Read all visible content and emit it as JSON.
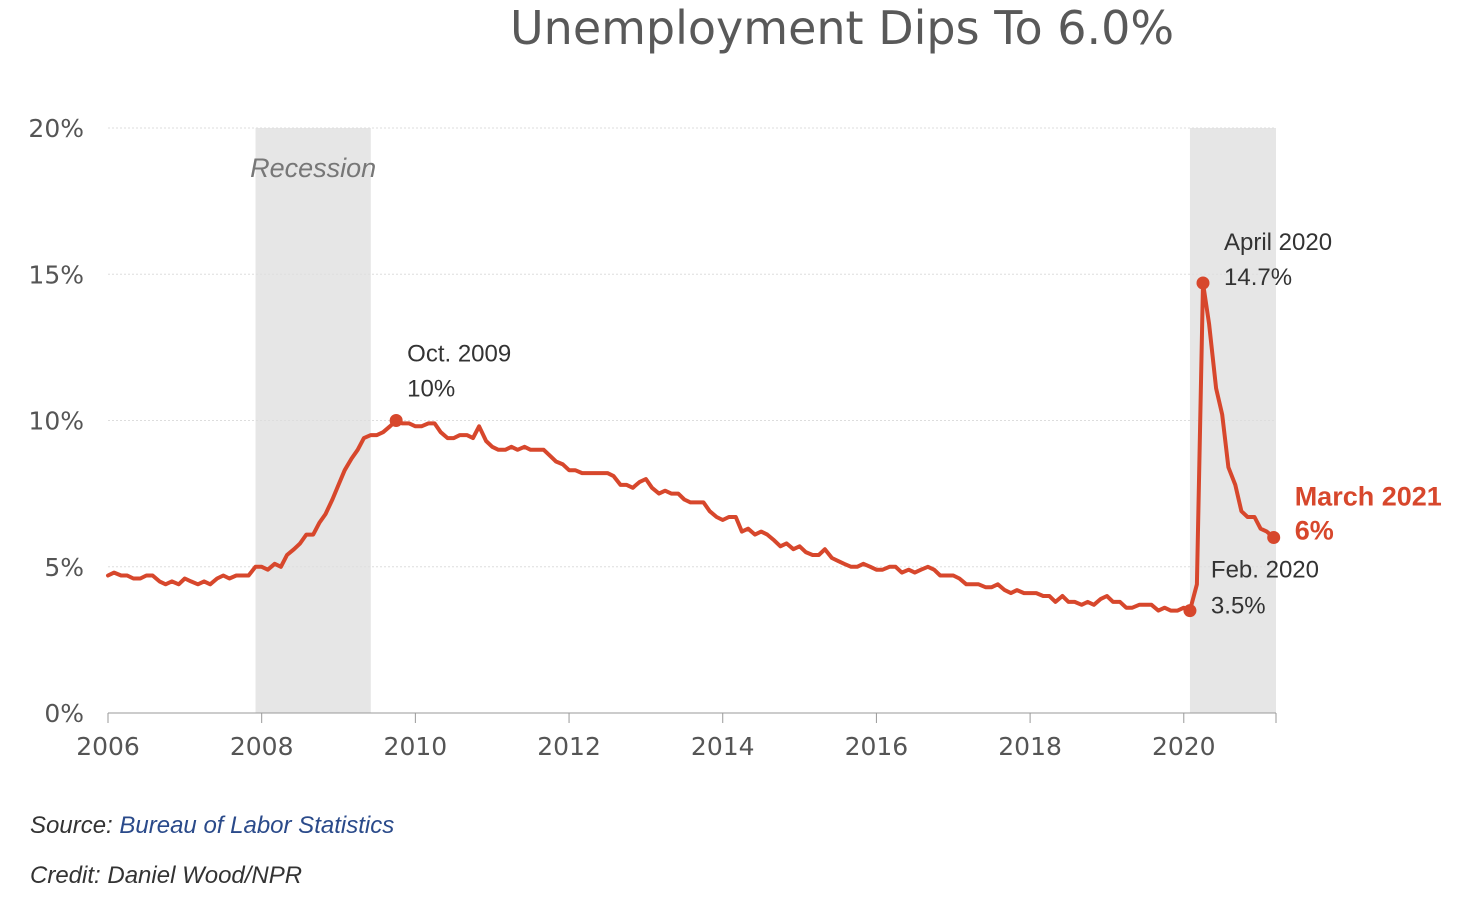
{
  "colors": {
    "line": "#d7472c",
    "recession": "#e6e6e6",
    "grid": "#dddddd",
    "link": "#2a4a8a"
  },
  "chart_data": {
    "type": "line",
    "title": "Unemployment Dips To 6.0%",
    "xlabel": "",
    "ylabel": "",
    "xlim": [
      2006.0,
      2021.2
    ],
    "ylim": [
      0,
      20
    ],
    "x_ticks": [
      "2006",
      "2008",
      "2010",
      "2012",
      "2014",
      "2016",
      "2018",
      "2020"
    ],
    "y_ticks": [
      "0%",
      "5%",
      "10%",
      "15%",
      "20%"
    ],
    "grid": true,
    "recessions": [
      {
        "label": "Recession",
        "start": 2007.92,
        "end": 2009.42
      },
      {
        "label": "",
        "start": 2020.08,
        "end": 2021.2
      }
    ],
    "series": [
      {
        "values": [
          [
            2006.0,
            4.7
          ],
          [
            2006.08,
            4.8
          ],
          [
            2006.17,
            4.7
          ],
          [
            2006.25,
            4.7
          ],
          [
            2006.33,
            4.6
          ],
          [
            2006.42,
            4.6
          ],
          [
            2006.5,
            4.7
          ],
          [
            2006.58,
            4.7
          ],
          [
            2006.67,
            4.5
          ],
          [
            2006.75,
            4.4
          ],
          [
            2006.83,
            4.5
          ],
          [
            2006.92,
            4.4
          ],
          [
            2007.0,
            4.6
          ],
          [
            2007.08,
            4.5
          ],
          [
            2007.17,
            4.4
          ],
          [
            2007.25,
            4.5
          ],
          [
            2007.33,
            4.4
          ],
          [
            2007.42,
            4.6
          ],
          [
            2007.5,
            4.7
          ],
          [
            2007.58,
            4.6
          ],
          [
            2007.67,
            4.7
          ],
          [
            2007.75,
            4.7
          ],
          [
            2007.83,
            4.7
          ],
          [
            2007.92,
            5.0
          ],
          [
            2008.0,
            5.0
          ],
          [
            2008.08,
            4.9
          ],
          [
            2008.17,
            5.1
          ],
          [
            2008.25,
            5.0
          ],
          [
            2008.33,
            5.4
          ],
          [
            2008.42,
            5.6
          ],
          [
            2008.5,
            5.8
          ],
          [
            2008.58,
            6.1
          ],
          [
            2008.67,
            6.1
          ],
          [
            2008.75,
            6.5
          ],
          [
            2008.83,
            6.8
          ],
          [
            2008.92,
            7.3
          ],
          [
            2009.0,
            7.8
          ],
          [
            2009.08,
            8.3
          ],
          [
            2009.17,
            8.7
          ],
          [
            2009.25,
            9.0
          ],
          [
            2009.33,
            9.4
          ],
          [
            2009.42,
            9.5
          ],
          [
            2009.5,
            9.5
          ],
          [
            2009.58,
            9.6
          ],
          [
            2009.67,
            9.8
          ],
          [
            2009.75,
            10.0
          ],
          [
            2009.83,
            9.9
          ],
          [
            2009.92,
            9.9
          ],
          [
            2010.0,
            9.8
          ],
          [
            2010.08,
            9.8
          ],
          [
            2010.17,
            9.9
          ],
          [
            2010.25,
            9.9
          ],
          [
            2010.33,
            9.6
          ],
          [
            2010.42,
            9.4
          ],
          [
            2010.5,
            9.4
          ],
          [
            2010.58,
            9.5
          ],
          [
            2010.67,
            9.5
          ],
          [
            2010.75,
            9.4
          ],
          [
            2010.83,
            9.8
          ],
          [
            2010.92,
            9.3
          ],
          [
            2011.0,
            9.1
          ],
          [
            2011.08,
            9.0
          ],
          [
            2011.17,
            9.0
          ],
          [
            2011.25,
            9.1
          ],
          [
            2011.33,
            9.0
          ],
          [
            2011.42,
            9.1
          ],
          [
            2011.5,
            9.0
          ],
          [
            2011.58,
            9.0
          ],
          [
            2011.67,
            9.0
          ],
          [
            2011.75,
            8.8
          ],
          [
            2011.83,
            8.6
          ],
          [
            2011.92,
            8.5
          ],
          [
            2012.0,
            8.3
          ],
          [
            2012.08,
            8.3
          ],
          [
            2012.17,
            8.2
          ],
          [
            2012.25,
            8.2
          ],
          [
            2012.33,
            8.2
          ],
          [
            2012.42,
            8.2
          ],
          [
            2012.5,
            8.2
          ],
          [
            2012.58,
            8.1
          ],
          [
            2012.67,
            7.8
          ],
          [
            2012.75,
            7.8
          ],
          [
            2012.83,
            7.7
          ],
          [
            2012.92,
            7.9
          ],
          [
            2013.0,
            8.0
          ],
          [
            2013.08,
            7.7
          ],
          [
            2013.17,
            7.5
          ],
          [
            2013.25,
            7.6
          ],
          [
            2013.33,
            7.5
          ],
          [
            2013.42,
            7.5
          ],
          [
            2013.5,
            7.3
          ],
          [
            2013.58,
            7.2
          ],
          [
            2013.67,
            7.2
          ],
          [
            2013.75,
            7.2
          ],
          [
            2013.83,
            6.9
          ],
          [
            2013.92,
            6.7
          ],
          [
            2014.0,
            6.6
          ],
          [
            2014.08,
            6.7
          ],
          [
            2014.17,
            6.7
          ],
          [
            2014.25,
            6.2
          ],
          [
            2014.33,
            6.3
          ],
          [
            2014.42,
            6.1
          ],
          [
            2014.5,
            6.2
          ],
          [
            2014.58,
            6.1
          ],
          [
            2014.67,
            5.9
          ],
          [
            2014.75,
            5.7
          ],
          [
            2014.83,
            5.8
          ],
          [
            2014.92,
            5.6
          ],
          [
            2015.0,
            5.7
          ],
          [
            2015.08,
            5.5
          ],
          [
            2015.17,
            5.4
          ],
          [
            2015.25,
            5.4
          ],
          [
            2015.33,
            5.6
          ],
          [
            2015.42,
            5.3
          ],
          [
            2015.5,
            5.2
          ],
          [
            2015.58,
            5.1
          ],
          [
            2015.67,
            5.0
          ],
          [
            2015.75,
            5.0
          ],
          [
            2015.83,
            5.1
          ],
          [
            2015.92,
            5.0
          ],
          [
            2016.0,
            4.9
          ],
          [
            2016.08,
            4.9
          ],
          [
            2016.17,
            5.0
          ],
          [
            2016.25,
            5.0
          ],
          [
            2016.33,
            4.8
          ],
          [
            2016.42,
            4.9
          ],
          [
            2016.5,
            4.8
          ],
          [
            2016.58,
            4.9
          ],
          [
            2016.67,
            5.0
          ],
          [
            2016.75,
            4.9
          ],
          [
            2016.83,
            4.7
          ],
          [
            2016.92,
            4.7
          ],
          [
            2017.0,
            4.7
          ],
          [
            2017.08,
            4.6
          ],
          [
            2017.17,
            4.4
          ],
          [
            2017.25,
            4.4
          ],
          [
            2017.33,
            4.4
          ],
          [
            2017.42,
            4.3
          ],
          [
            2017.5,
            4.3
          ],
          [
            2017.58,
            4.4
          ],
          [
            2017.67,
            4.2
          ],
          [
            2017.75,
            4.1
          ],
          [
            2017.83,
            4.2
          ],
          [
            2017.92,
            4.1
          ],
          [
            2018.0,
            4.1
          ],
          [
            2018.08,
            4.1
          ],
          [
            2018.17,
            4.0
          ],
          [
            2018.25,
            4.0
          ],
          [
            2018.33,
            3.8
          ],
          [
            2018.42,
            4.0
          ],
          [
            2018.5,
            3.8
          ],
          [
            2018.58,
            3.8
          ],
          [
            2018.67,
            3.7
          ],
          [
            2018.75,
            3.8
          ],
          [
            2018.83,
            3.7
          ],
          [
            2018.92,
            3.9
          ],
          [
            2019.0,
            4.0
          ],
          [
            2019.08,
            3.8
          ],
          [
            2019.17,
            3.8
          ],
          [
            2019.25,
            3.6
          ],
          [
            2019.33,
            3.6
          ],
          [
            2019.42,
            3.7
          ],
          [
            2019.5,
            3.7
          ],
          [
            2019.58,
            3.7
          ],
          [
            2019.67,
            3.5
          ],
          [
            2019.75,
            3.6
          ],
          [
            2019.83,
            3.5
          ],
          [
            2019.92,
            3.5
          ],
          [
            2020.0,
            3.6
          ],
          [
            2020.08,
            3.5
          ],
          [
            2020.17,
            4.4
          ],
          [
            2020.25,
            14.7
          ],
          [
            2020.33,
            13.3
          ],
          [
            2020.42,
            11.1
          ],
          [
            2020.5,
            10.2
          ],
          [
            2020.58,
            8.4
          ],
          [
            2020.67,
            7.8
          ],
          [
            2020.75,
            6.9
          ],
          [
            2020.83,
            6.7
          ],
          [
            2020.92,
            6.7
          ],
          [
            2021.0,
            6.3
          ],
          [
            2021.08,
            6.2
          ],
          [
            2021.17,
            6.0
          ]
        ]
      }
    ],
    "annotations": [
      {
        "x": 2009.75,
        "y": 10.0,
        "lines": [
          "Oct. 2009",
          "10%"
        ],
        "highlight": false
      },
      {
        "x": 2020.25,
        "y": 14.7,
        "lines": [
          "April 2020",
          "14.7%"
        ],
        "highlight": false
      },
      {
        "x": 2020.08,
        "y": 3.5,
        "lines": [
          "Feb. 2020",
          "3.5%"
        ],
        "highlight": false
      },
      {
        "x": 2021.17,
        "y": 6.0,
        "lines": [
          "March 2021",
          "6%"
        ],
        "highlight": true
      }
    ]
  },
  "footer": {
    "source_label": "Source: ",
    "source_link": "Bureau of Labor Statistics",
    "credit": "Credit: Daniel Wood/NPR"
  }
}
